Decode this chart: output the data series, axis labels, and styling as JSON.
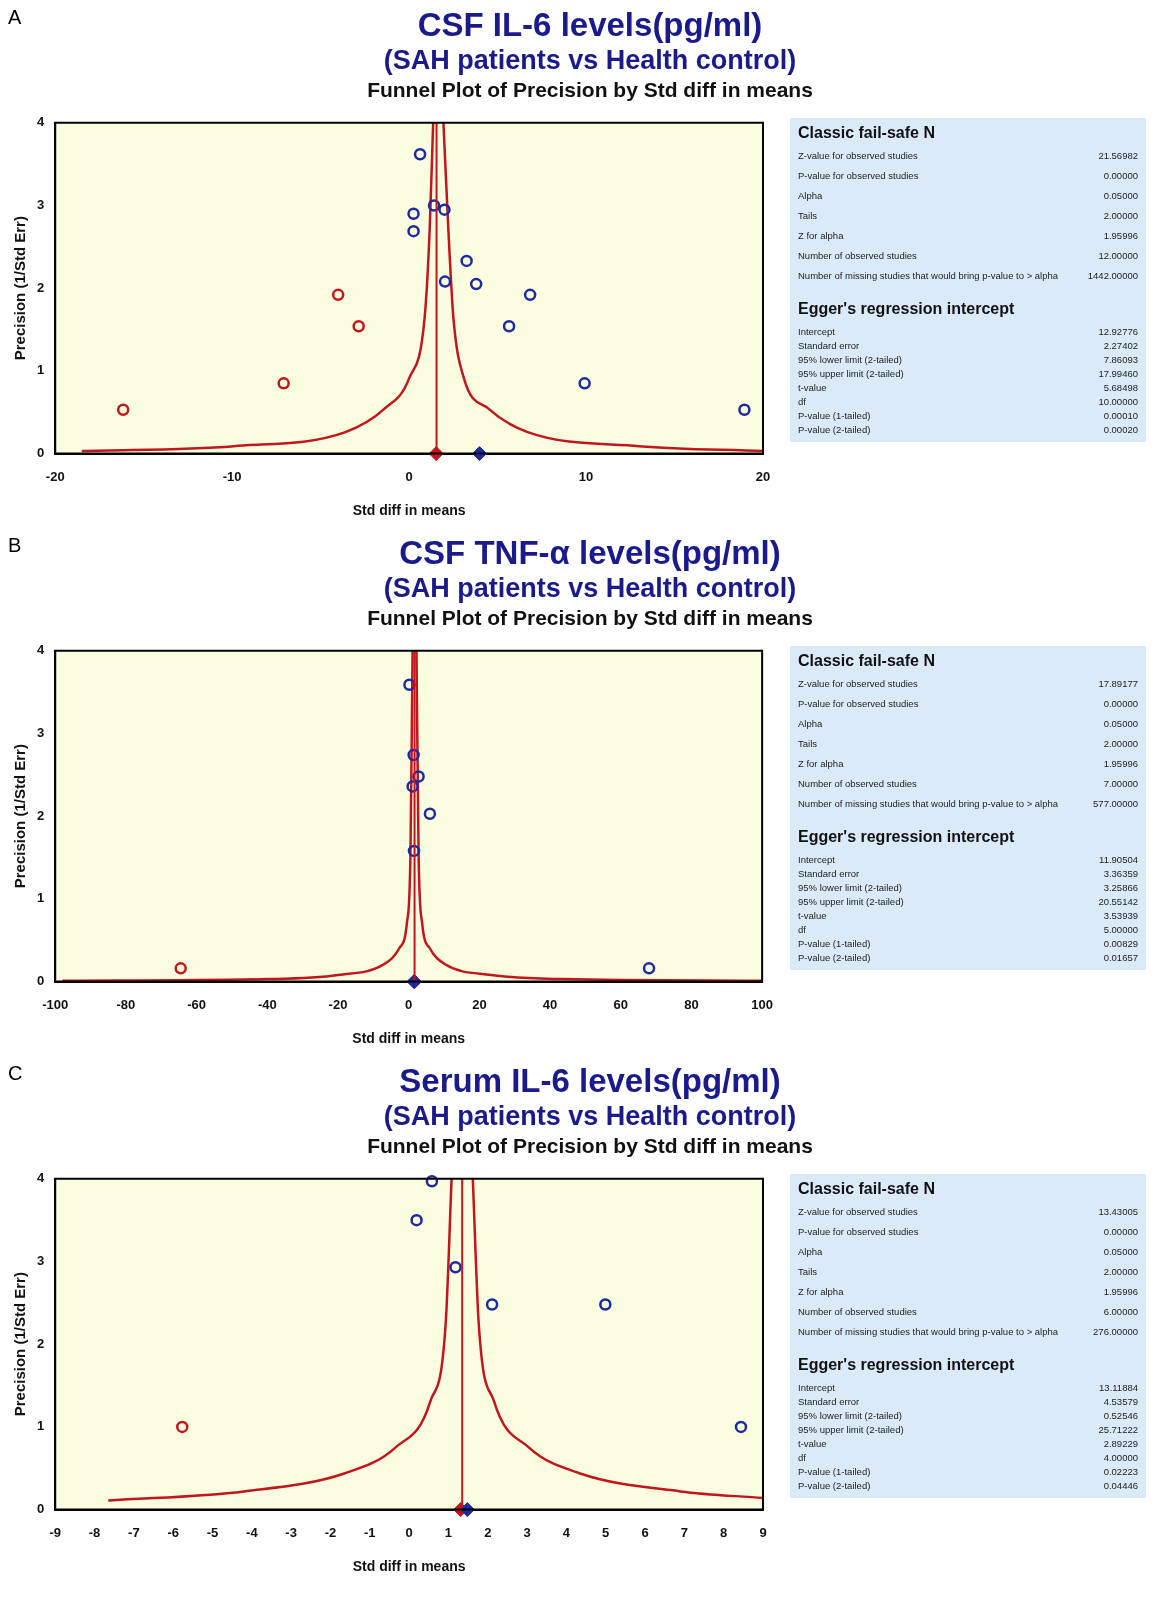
{
  "chart_data": [
    {
      "type": "scatter",
      "title": "CSF IL-6 levels(pg/ml)",
      "subtitle": "(SAH patients vs Health control)",
      "annotations": [
        "A",
        "Funnel Plot of Precision by Std diff in means"
      ],
      "xlabel": "Std diff in means",
      "ylabel": "Precision (1/Std Err)",
      "xlim": [
        -20,
        20
      ],
      "xticks": [
        -20,
        -10,
        0,
        10,
        20
      ],
      "ylim": [
        0,
        4
      ],
      "yticks": [
        0,
        1,
        2,
        3,
        4
      ],
      "ref_lines": [
        {
          "axis": "x",
          "value": 1.55,
          "color": "#c0161c"
        }
      ],
      "series": [
        {
          "type": "scatter",
          "marker": "circle",
          "color": "#1c2aa0",
          "x": [
            0.62,
            0.25,
            0.25,
            1.41,
            2.0,
            3.25,
            2.03,
            3.79,
            6.84,
            5.65,
            9.92,
            18.95
          ],
          "values": [
            3.62,
            2.9,
            2.69,
            3.0,
            2.95,
            2.33,
            2.08,
            2.05,
            1.92,
            1.54,
            0.85,
            0.53
          ]
        },
        {
          "type": "scatter",
          "marker": "circle",
          "color": "#c0161c",
          "x": [
            -16.16,
            -7.09,
            -4.01,
            -2.85
          ],
          "values": [
            0.53,
            0.85,
            1.92,
            1.54
          ]
        },
        {
          "type": "line",
          "color": "#c0161c",
          "x": [
            -18.5,
            -9.9,
            -3.6,
            -1.4,
            0,
            0.88,
            1.16,
            1.36
          ],
          "values": [
            0.03,
            0.09,
            0.26,
            0.54,
            0.91,
            1.65,
            2.7,
            4
          ]
        },
        {
          "type": "line",
          "color": "#c0161c",
          "x": [
            1.94,
            2.22,
            2.5,
            3.1,
            4.5,
            6.7,
            13,
            20
          ],
          "values": [
            4,
            2.7,
            1.65,
            0.91,
            0.54,
            0.26,
            0.09,
            0.03
          ]
        },
        {
          "type": "scatter",
          "marker": "diamond",
          "color": "#1c2aa0",
          "x": [
            3.98
          ],
          "values": [
            0
          ]
        },
        {
          "type": "scatter",
          "marker": "diamond",
          "color": "#c0161c",
          "x": [
            1.53
          ],
          "values": [
            0
          ]
        }
      ]
    },
    {
      "type": "other",
      "title": "Classic fail-safe N",
      "categories": [
        "Z-value for observed studies",
        "P-value for observed studies",
        "Alpha",
        "Tails",
        "Z for alpha",
        "Number of observed studies",
        "Number of missing studies that would bring p-value to > alpha"
      ],
      "value_labels": [
        "21.56982",
        "0.00000",
        "0.05000",
        "2.00000",
        "1.95996",
        "12.00000",
        "1442.00000"
      ]
    },
    {
      "type": "other",
      "title": "Egger's regression intercept",
      "categories": [
        "Intercept",
        "Standard error",
        "95% lower limit (2-tailed)",
        "95% upper limit (2-tailed)",
        "t-value",
        "df",
        "P-value (1-tailed)",
        "P-value (2-tailed)"
      ],
      "value_labels": [
        "12.92776",
        "2.27402",
        "7.86093",
        "17.99460",
        "5.68498",
        "10.00000",
        "0.00010",
        "0.00020"
      ]
    },
    {
      "type": "scatter",
      "title": "CSF TNF-α levels(pg/ml)",
      "subtitle": "(SAH patients vs Health control)",
      "annotations": [
        "B",
        "Funnel Plot of Precision by Std diff in means"
      ],
      "xlabel": "Std diff in means",
      "ylabel": "Precision (1/Std Err)",
      "xlim": [
        -100,
        100
      ],
      "xticks": [
        -100,
        -80,
        -60,
        -40,
        -20,
        0,
        20,
        40,
        60,
        80,
        100
      ],
      "ylim": [
        0,
        4
      ],
      "yticks": [
        0,
        1,
        2,
        3,
        4
      ],
      "ref_lines": [
        {
          "axis": "x",
          "value": 1.66,
          "color": "#c0161c"
        }
      ],
      "series": [
        {
          "type": "scatter",
          "marker": "circle",
          "color": "#1c2aa0",
          "x": [
            0.2,
            1.4,
            2.8,
            1.1,
            6.0,
            1.5,
            68
          ],
          "values": [
            3.59,
            2.74,
            2.48,
            2.36,
            2.03,
            1.58,
            0.16
          ]
        },
        {
          "type": "scatter",
          "marker": "circle",
          "color": "#c0161c",
          "x": [
            -64.5
          ],
          "values": [
            0.16
          ]
        },
        {
          "type": "line",
          "color": "#c0161c",
          "x": [
            -98,
            -40.2,
            -20,
            -7,
            -2.7,
            -0.5,
            0.5,
            1.1
          ],
          "values": [
            0.01,
            0.03,
            0.08,
            0.21,
            0.4,
            0.71,
            1.54,
            4
          ]
        },
        {
          "type": "line",
          "color": "#c0161c",
          "x": [
            2.2,
            2.8,
            3.8,
            6,
            10.3,
            23.3,
            43.5,
            100
          ],
          "values": [
            4,
            1.54,
            0.71,
            0.4,
            0.21,
            0.08,
            0.03,
            0.01
          ]
        },
        {
          "type": "scatter",
          "marker": "diamond",
          "color": "#1c2aa0",
          "x": [
            1.5
          ],
          "values": [
            0
          ]
        },
        {
          "type": "scatter",
          "marker": "diamond",
          "color": "#c0161c",
          "x": [
            1.66
          ],
          "values": [
            0
          ]
        }
      ]
    },
    {
      "type": "other",
      "title": "Classic fail-safe N",
      "categories": [
        "Z-value for observed studies",
        "P-value for observed studies",
        "Alpha",
        "Tails",
        "Z for alpha",
        "Number of observed studies",
        "Number of missing studies that would bring p-value to > alpha"
      ],
      "value_labels": [
        "17.89177",
        "0.00000",
        "0.05000",
        "2.00000",
        "1.95996",
        "7.00000",
        "577.00000"
      ]
    },
    {
      "type": "other",
      "title": "Egger's regression intercept",
      "categories": [
        "Intercept",
        "Standard error",
        "95% lower limit (2-tailed)",
        "95% upper limit (2-tailed)",
        "t-value",
        "df",
        "P-value (1-tailed)",
        "P-value (2-tailed)"
      ],
      "value_labels": [
        "11.90504",
        "3.36359",
        "3.25866",
        "20.55142",
        "3.53939",
        "5.00000",
        "0.00829",
        "0.01657"
      ]
    },
    {
      "type": "scatter",
      "title": "Serum IL-6 levels(pg/ml)",
      "subtitle": "(SAH patients vs Health control)",
      "annotations": [
        "C",
        "Funnel Plot of Precision by Std diff in means"
      ],
      "xlabel": "Std diff in means",
      "ylabel": "Precision (1/Std Err)",
      "xlim": [
        -9,
        9
      ],
      "xticks": [
        -9,
        -8,
        -7,
        -6,
        -5,
        -4,
        -3,
        -2,
        -1,
        0,
        1,
        2,
        3,
        4,
        5,
        6,
        7,
        8,
        9
      ],
      "ylim": [
        0,
        4
      ],
      "yticks": [
        0,
        1,
        2,
        3,
        4
      ],
      "ref_lines": [
        {
          "axis": "x",
          "value": 1.35,
          "color": "#c0161c"
        }
      ],
      "series": [
        {
          "type": "scatter",
          "marker": "circle",
          "color": "#1c2aa0",
          "x": [
            0.58,
            0.19,
            1.18,
            2.11,
            4.99,
            8.44
          ],
          "values": [
            3.97,
            3.5,
            2.93,
            2.48,
            2.48,
            1.0
          ]
        },
        {
          "type": "scatter",
          "marker": "circle",
          "color": "#c0161c",
          "x": [
            -5.77
          ],
          "values": [
            1.0
          ]
        },
        {
          "type": "line",
          "color": "#c0161c",
          "x": [
            -7.65,
            -4.2,
            -1.63,
            -0.35,
            0.54,
            0.93,
            1.08
          ],
          "values": [
            0.11,
            0.22,
            0.44,
            0.75,
            1.31,
            2.25,
            4
          ]
        },
        {
          "type": "line",
          "color": "#c0161c",
          "x": [
            1.62,
            1.77,
            2.16,
            3.05,
            4.33,
            6.9,
            9
          ],
          "values": [
            4,
            2.25,
            1.31,
            0.75,
            0.44,
            0.22,
            0.14
          ]
        },
        {
          "type": "scatter",
          "marker": "diamond",
          "color": "#1c2aa0",
          "x": [
            1.48
          ],
          "values": [
            0
          ]
        },
        {
          "type": "scatter",
          "marker": "diamond",
          "color": "#c0161c",
          "x": [
            1.31
          ],
          "values": [
            0
          ]
        }
      ]
    },
    {
      "type": "other",
      "title": "Classic fail-safe N",
      "categories": [
        "Z-value for observed studies",
        "P-value for observed studies",
        "Alpha",
        "Tails",
        "Z for alpha",
        "Number of observed studies",
        "Number of missing studies that would bring p-value to > alpha"
      ],
      "value_labels": [
        "13.43005",
        "0.00000",
        "0.05000",
        "2.00000",
        "1.95996",
        "6.00000",
        "276.00000"
      ]
    },
    {
      "type": "other",
      "title": "Egger's regression intercept",
      "categories": [
        "Intercept",
        "Standard error",
        "95% lower limit (2-tailed)",
        "95% upper limit (2-tailed)",
        "t-value",
        "df",
        "P-value (1-tailed)",
        "P-value (2-tailed)"
      ],
      "value_labels": [
        "13.11884",
        "4.53579",
        "0.52546",
        "25.71222",
        "2.89229",
        "4.00000",
        "0.02223",
        "0.04446"
      ]
    }
  ]
}
